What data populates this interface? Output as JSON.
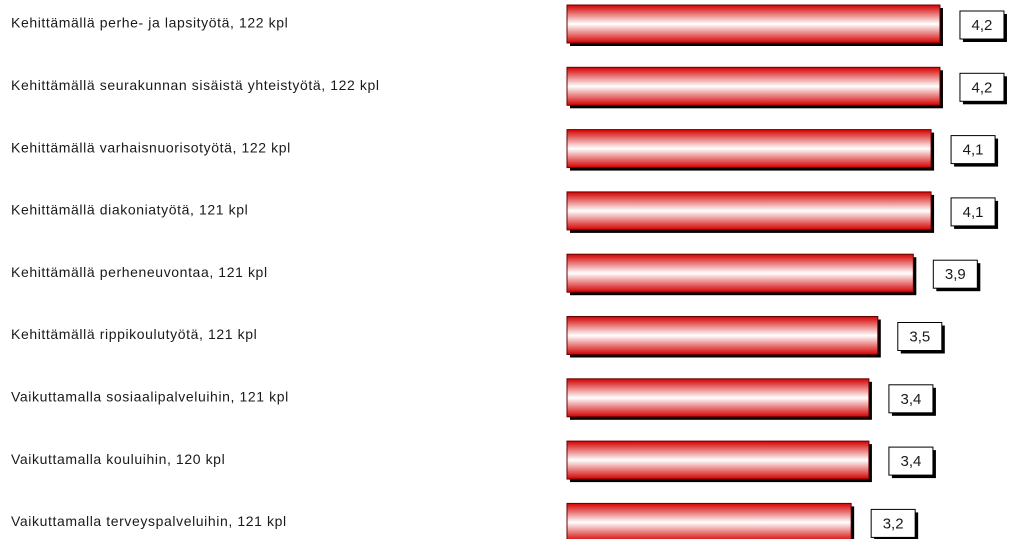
{
  "chart_data": {
    "type": "bar",
    "orientation": "horizontal",
    "categories": [
      "Kehittämällä perhe- ja lapsityötä, 122 kpl",
      "Kehittämällä seurakunnan sisäistä yhteistyötä, 122 kpl",
      "Kehittämällä varhaisnuorisotyötä, 122 kpl",
      "Kehittämällä diakoniatyötä, 121 kpl",
      "Kehittämällä perheneuvontaa, 121 kpl",
      "Kehittämällä rippikoulutyötä, 121 kpl",
      "Vaikuttamalla sosiaalipalveluihin, 121 kpl",
      "Vaikuttamalla kouluihin, 120 kpl",
      "Vaikuttamalla terveyspalveluihin, 121 kpl"
    ],
    "values": [
      4.2,
      4.2,
      4.1,
      4.1,
      3.9,
      3.5,
      3.4,
      3.4,
      3.2
    ],
    "value_labels": [
      "4,2",
      "4,2",
      "4,1",
      "4,1",
      "3,9",
      "3,5",
      "3,4",
      "3,4",
      "3,2"
    ],
    "color": "#e00000"
  }
}
